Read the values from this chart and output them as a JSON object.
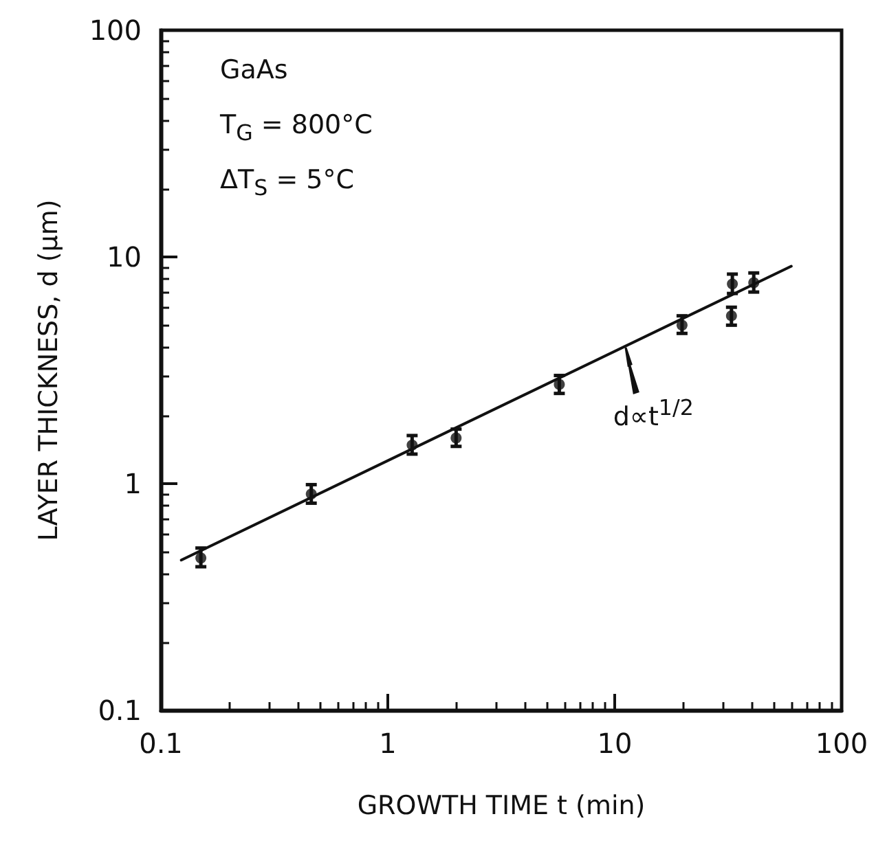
{
  "chart_data": {
    "type": "scatter",
    "xlabel": "GROWTH TIME t (min)",
    "ylabel": "LAYER THICKNESS, d (μm)",
    "log": "xy",
    "grid": false,
    "marker": "circle",
    "xlim": [
      0.1,
      100
    ],
    "xticks": [
      0.1,
      1,
      10,
      100
    ],
    "ylim": [
      0.1,
      100
    ],
    "yticks": [
      0.1,
      1,
      10,
      100
    ],
    "annotations": [
      "GaAs",
      "T$_{G}$ = 800°C",
      "ΔT$_{S}$ = 5°C",
      {
        "text": "d∝t$^{1/2}$",
        "x": 11,
        "y": 4.2
      }
    ],
    "series": [
      {
        "color": "#111111",
        "x": [
          0.15,
          0.46,
          1.28,
          2.0,
          5.7,
          19.8,
          32.7,
          33,
          41
        ],
        "values": [
          0.47,
          0.9,
          1.48,
          1.59,
          2.74,
          5.0,
          5.5,
          7.6,
          7.7
        ],
        "errors": [
          [
            0.43,
            0.52
          ],
          [
            0.82,
            0.99
          ],
          [
            1.35,
            1.63
          ],
          [
            1.46,
            1.74
          ],
          [
            2.5,
            3.0
          ],
          [
            4.6,
            5.5
          ],
          [
            5.0,
            6.0
          ],
          [
            6.9,
            8.4
          ],
          [
            7.0,
            8.5
          ]
        ]
      },
      {
        "type": "line",
        "color": "#111111",
        "line_style": "solid",
        "marker": "none",
        "x": [
          0.123,
          60
        ],
        "values": [
          0.46,
          9.1
        ]
      }
    ]
  }
}
